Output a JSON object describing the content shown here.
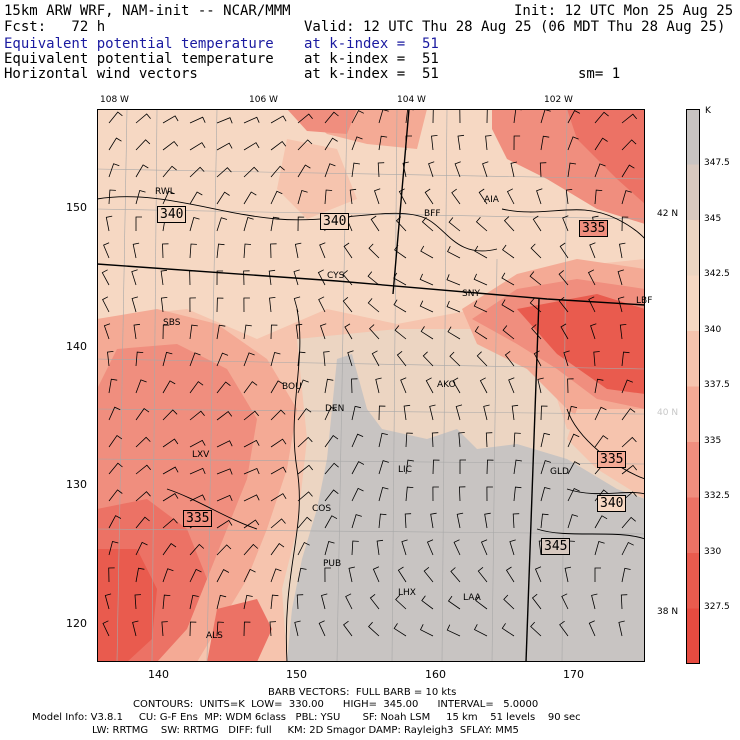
{
  "header": {
    "line1_left": "15km ARW WRF, NAM-init -- NCAR/MMM",
    "line1_right": "Init: 12 UTC Mon 25 Aug 25",
    "line2_left": "Fcst:   72 h",
    "line2_right": "Valid: 12 UTC Thu 28 Aug 25 (06 MDT Thu 28 Aug 25)",
    "fields": [
      {
        "name": "Equivalent potential temperature",
        "level": "at k-index =  51",
        "color": "#1a1aa0"
      },
      {
        "name": "Equivalent potential temperature",
        "level": "at k-index =  51",
        "color": "#000000"
      },
      {
        "name": "Horizontal wind vectors",
        "level": "at k-index =  51",
        "color": "#000000"
      }
    ],
    "smoothing": "sm= 1"
  },
  "longitude_labels": [
    "108 W",
    "106 W",
    "104 W",
    "102 W"
  ],
  "latitude_labels": [
    "42 N",
    "40 N",
    "38 N"
  ],
  "x_ticks": [
    "140",
    "150",
    "160",
    "170"
  ],
  "y_ticks": [
    "150",
    "140",
    "130",
    "120"
  ],
  "cities": [
    "RWL",
    "BFF",
    "AIA",
    "CYS",
    "SNY",
    "LBF",
    "SBS",
    "BOU",
    "AKO",
    "DEN",
    "LXV",
    "LIC",
    "GLD",
    "COS",
    "PUB",
    "LHX",
    "LAA",
    "ALS"
  ],
  "contour_labels": [
    "340",
    "340",
    "335",
    "335",
    "340",
    "345",
    "335"
  ],
  "colorbar": {
    "unit": "K",
    "labels": [
      "347.5",
      "345",
      "342.5",
      "340",
      "337.5",
      "335",
      "332.5",
      "330",
      "327.5"
    ],
    "colors": [
      "#c8c4c2",
      "#d8c9bf",
      "#ecd5c2",
      "#f6d8c3",
      "#f6c4ae",
      "#f4aa95",
      "#f08e7e",
      "#ec7265",
      "#e95b4e",
      "#e64b40"
    ]
  },
  "footer": {
    "barb_line": "BARB VECTORS:  FULL BARB = 10 kts",
    "contour_line": "CONTOURS:  UNITS=K  LOW=  330.00      HIGH=  345.00      INTERVAL=   5.0000",
    "model_line1": "Model Info: V3.8.1     CU: G-F Ens  MP: WDM 6class   PBL: YSU       SF: Noah LSM     15 km    51 levels    90 sec",
    "model_line2": "LW: RRTMG    SW: RRTMG   DIFF: full     KM: 2D Smagor DAMP: Rayleigh3  SFLAY: MM5"
  }
}
